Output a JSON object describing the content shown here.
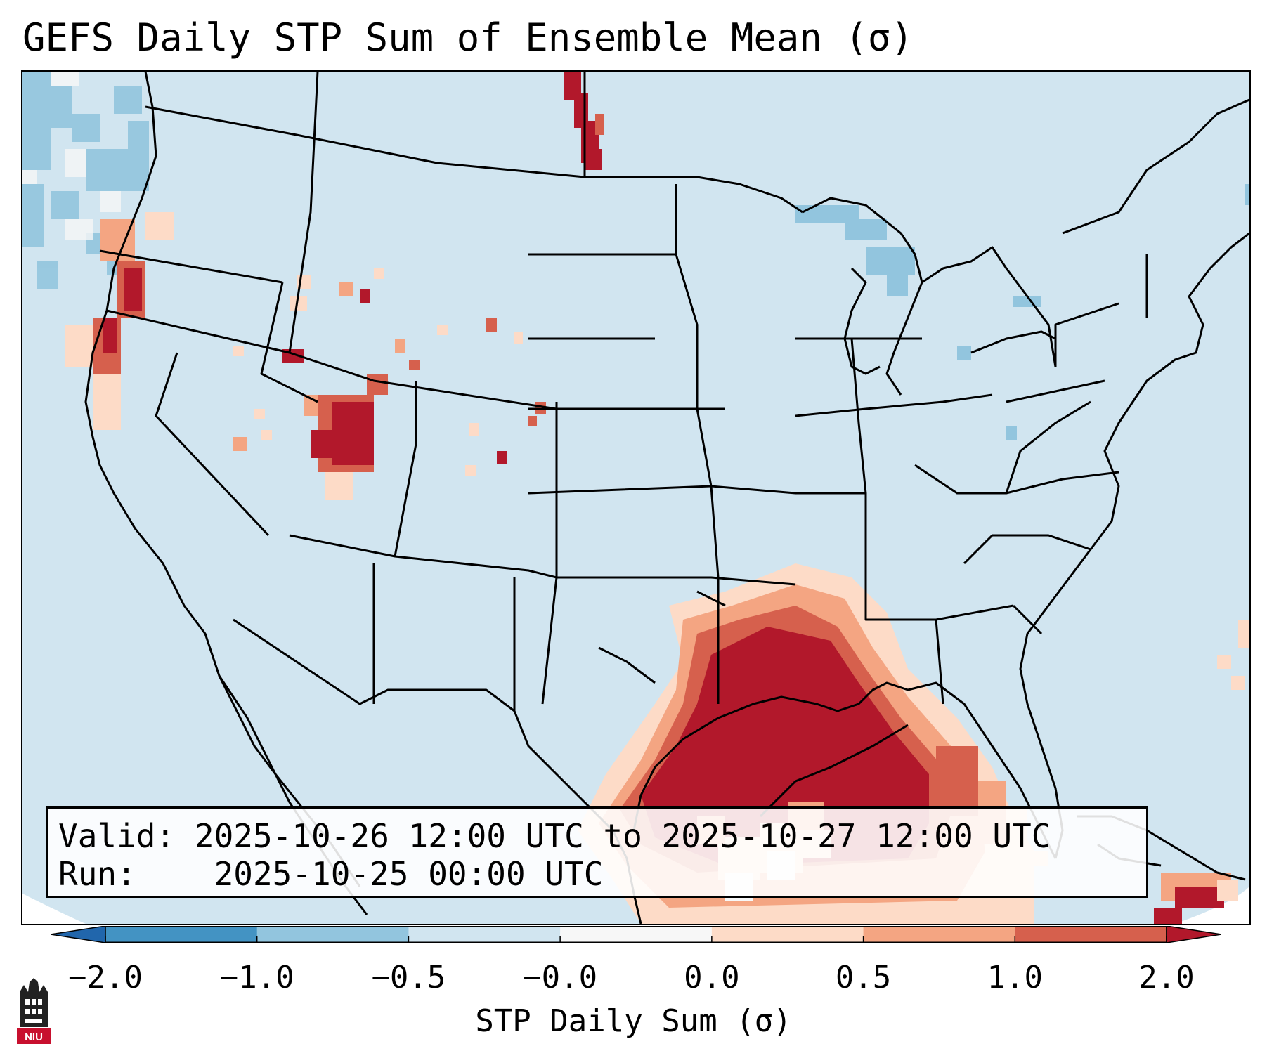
{
  "title": "GEFS Daily STP Sum of Ensemble Mean (σ)",
  "info": {
    "valid_label": "Valid:",
    "valid_value": "2025-10-26 12:00 UTC to 2025-10-27 12:00 UTC",
    "run_label": "Run:",
    "run_value": "2025-10-25 00:00 UTC"
  },
  "colorbar": {
    "label": "STP Daily Sum (σ)",
    "ticks": [
      "−2.0",
      "−1.0",
      "−0.5",
      "−0.0",
      "0.0",
      "0.5",
      "1.0",
      "2.0"
    ],
    "bin_colors": [
      "#4393c3",
      "#92c5de",
      "#d1e5f0",
      "#f7f7f7",
      "#fddbc7",
      "#f4a582",
      "#d6604d"
    ],
    "under_color": "#2166ac",
    "over_color": "#b2182b",
    "extend": "both"
  },
  "map": {
    "region": "Contiguous United States, southern Canada, northern Mexico, Gulf of Mexico",
    "max_anomaly_area": "Gulf of Mexico / Texas / Louisiana / Mississippi",
    "background_color": "#d1e5f0"
  },
  "logo": {
    "text": "NIU",
    "color": "#c8102e"
  }
}
